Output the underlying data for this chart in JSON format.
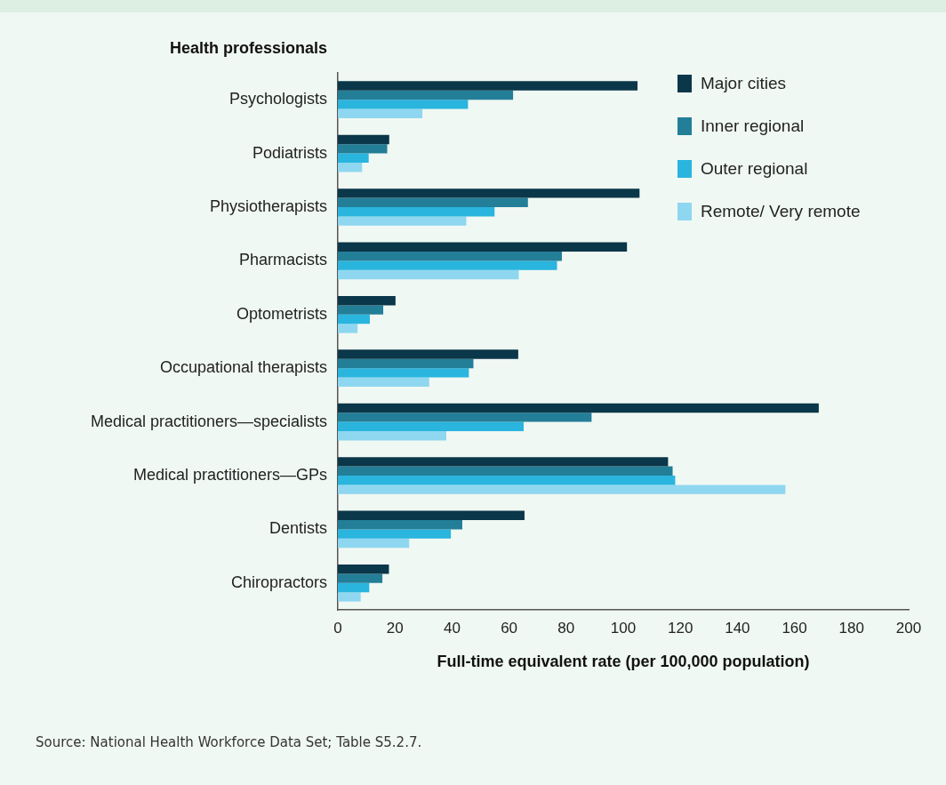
{
  "chart_data": {
    "type": "bar",
    "orientation": "horizontal",
    "ylabel": "Health professionals",
    "xlabel": "Full-time equivalent rate (per 100,000 population)",
    "categories": [
      "Psychologists",
      "Podiatrists",
      "Physiotherapists",
      "Pharmacists",
      "Optometrists",
      "Occupational therapists",
      "Medical practitioners—specialists",
      "Medical practitioners—GPs",
      "Dentists",
      "Chiropractors"
    ],
    "series": [
      {
        "name": "Major cities",
        "color": "#0a3749",
        "values": [
          105,
          18,
          105.7,
          101.3,
          20.2,
          63.2,
          168.5,
          115.7,
          65.4,
          17.9
        ]
      },
      {
        "name": "Inner regional",
        "color": "#237e98",
        "values": [
          61.4,
          17.3,
          66.6,
          78.5,
          15.9,
          47.5,
          88.9,
          117.3,
          43.6,
          15.6
        ]
      },
      {
        "name": "Outer regional",
        "color": "#29b5de",
        "values": [
          45.6,
          10.8,
          54.9,
          76.8,
          11.2,
          45.9,
          65.1,
          118.2,
          39.6,
          11
        ]
      },
      {
        "name": "Remote/ Very remote",
        "color": "#8fd7f0",
        "values": [
          29.6,
          8.5,
          45,
          63.4,
          6.9,
          32,
          38,
          156.8,
          25,
          8
        ]
      }
    ],
    "xlim": [
      0,
      200
    ],
    "xticks": [
      0,
      20,
      40,
      60,
      80,
      100,
      120,
      140,
      160,
      180,
      200
    ],
    "grid": false,
    "legend": "top right",
    "annotations": [
      "Source: National Health Workforce Data Set; Table S5.2.7."
    ]
  }
}
